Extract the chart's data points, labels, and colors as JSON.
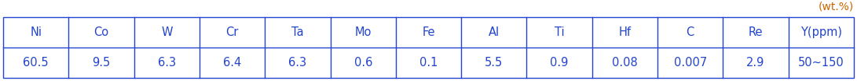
{
  "headers": [
    "Ni",
    "Co",
    "W",
    "Cr",
    "Ta",
    "Mo",
    "Fe",
    "Al",
    "Ti",
    "Hf",
    "C",
    "Re",
    "Y(ppm)"
  ],
  "values": [
    "60.5",
    "9.5",
    "6.3",
    "6.4",
    "6.3",
    "0.6",
    "0.1",
    "5.5",
    "0.9",
    "0.08",
    "0.007",
    "2.9",
    "50~150"
  ],
  "unit_label": "(wt.%)",
  "text_color": "#2244cc",
  "border_color": "#2244cc",
  "unit_color": "#cc6600",
  "font_size": 10.5,
  "unit_font_size": 10,
  "fig_width": 10.91,
  "fig_height": 1.04,
  "dpi": 100
}
